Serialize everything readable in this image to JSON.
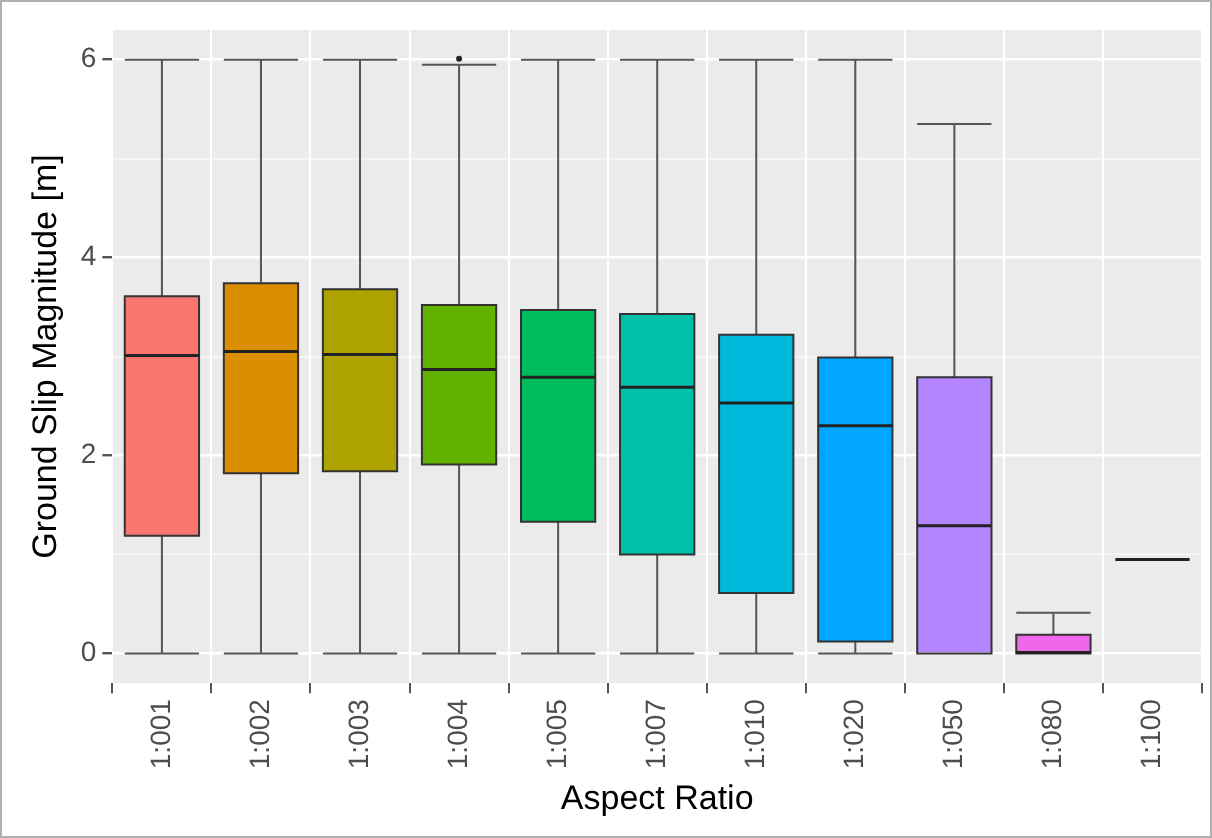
{
  "chart_data": {
    "type": "box",
    "xlabel": "Aspect Ratio",
    "ylabel": "Ground Slip Magnitude [m]",
    "categories": [
      "1:001",
      "1:002",
      "1:003",
      "1:004",
      "1:005",
      "1:007",
      "1:010",
      "1:020",
      "1:050",
      "1:080",
      "1:100"
    ],
    "colors": [
      "#f8766d",
      "#db8e00",
      "#aea200",
      "#64b200",
      "#00bd5c",
      "#00c1a7",
      "#00badE",
      "#00a6ff",
      "#b385ff",
      "#ef67eb",
      "#222222"
    ],
    "boxes": [
      {
        "low": 0,
        "q1": 1.19,
        "median": 3.01,
        "q3": 3.61,
        "high": 6
      },
      {
        "low": 0,
        "q1": 1.82,
        "median": 3.05,
        "q3": 3.74,
        "high": 6
      },
      {
        "low": 0,
        "q1": 1.84,
        "median": 3.02,
        "q3": 3.68,
        "high": 6
      },
      {
        "low": 0,
        "q1": 1.91,
        "median": 2.87,
        "q3": 3.52,
        "high": 5.95,
        "outliers": [
          6.01
        ]
      },
      {
        "low": 0,
        "q1": 1.33,
        "median": 2.79,
        "q3": 3.47,
        "high": 6
      },
      {
        "low": 0,
        "q1": 1.0,
        "median": 2.69,
        "q3": 3.43,
        "high": 6
      },
      {
        "low": 0,
        "q1": 0.61,
        "median": 2.53,
        "q3": 3.22,
        "high": 6
      },
      {
        "low": 0,
        "q1": 0.12,
        "median": 2.3,
        "q3": 2.99,
        "high": 6
      },
      {
        "low": 0,
        "q1": 0,
        "median": 1.29,
        "q3": 2.79,
        "high": 5.35
      },
      {
        "low": 0,
        "q1": 0,
        "median": 0.01,
        "q3": 0.19,
        "high": 0.41
      },
      {
        "low": 0.95,
        "q1": 0.95,
        "median": 0.95,
        "q3": 0.95,
        "high": 0.95
      }
    ],
    "ylim": [
      -0.3,
      6.3
    ],
    "yticks": [
      0,
      {
        "value": 1,
        "label": null
      },
      2,
      {
        "value": 3,
        "label": null
      },
      4,
      {
        "value": 5,
        "label": null
      },
      6
    ],
    "grid": true,
    "legend": false
  }
}
